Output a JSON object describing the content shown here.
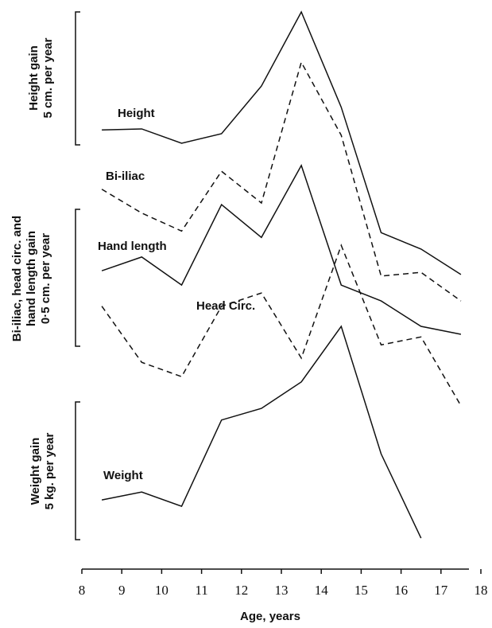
{
  "chart_data": {
    "type": "line",
    "x_label": "Age, years",
    "xlim": [
      8,
      18
    ],
    "xticks": [
      8,
      9,
      10,
      11,
      12,
      13,
      14,
      15,
      16,
      17,
      18
    ],
    "ylim": [
      0,
      100
    ],
    "x": [
      8.5,
      9.5,
      10.5,
      11.5,
      12.5,
      13.5,
      14.5,
      15.5,
      16.5,
      17.5
    ],
    "scale_labels": [
      [
        "Height gain",
        "5 cm. per year"
      ],
      [
        "Bi-iliac, head circ. and",
        "hand length gain",
        "0·5 cm. per year"
      ],
      [
        "Weight gain",
        "5 kg. per year"
      ]
    ],
    "series": [
      {
        "name": "Height",
        "color": "#111111",
        "dashed": false,
        "values": [
          77.7,
          77.9,
          75.2,
          77.0,
          86.0,
          100.0,
          82.0,
          58.3,
          55.2,
          50.4
        ]
      },
      {
        "name": "Bi-iliac",
        "color": "#111111",
        "dashed": true,
        "values": [
          66.5,
          62.0,
          58.6,
          69.9,
          63.9,
          90.5,
          76.7,
          50.1,
          50.8,
          45.4
        ]
      },
      {
        "name": "Hand length",
        "color": "#111111",
        "dashed": false,
        "values": [
          51.1,
          53.7,
          48.4,
          63.6,
          57.4,
          71.0,
          48.4,
          45.4,
          40.6,
          39.1
        ]
      },
      {
        "name": "Head Circ.",
        "color": "#111111",
        "dashed": true,
        "values": [
          44.4,
          33.8,
          31.1,
          44.4,
          46.9,
          34.6,
          55.9,
          37.1,
          38.6,
          25.6
        ]
      },
      {
        "name": "Weight",
        "color": "#111111",
        "dashed": false,
        "values": [
          7.8,
          9.3,
          6.6,
          22.9,
          25.1,
          30.1,
          40.6,
          16.5,
          0.6,
          null
        ]
      }
    ]
  }
}
